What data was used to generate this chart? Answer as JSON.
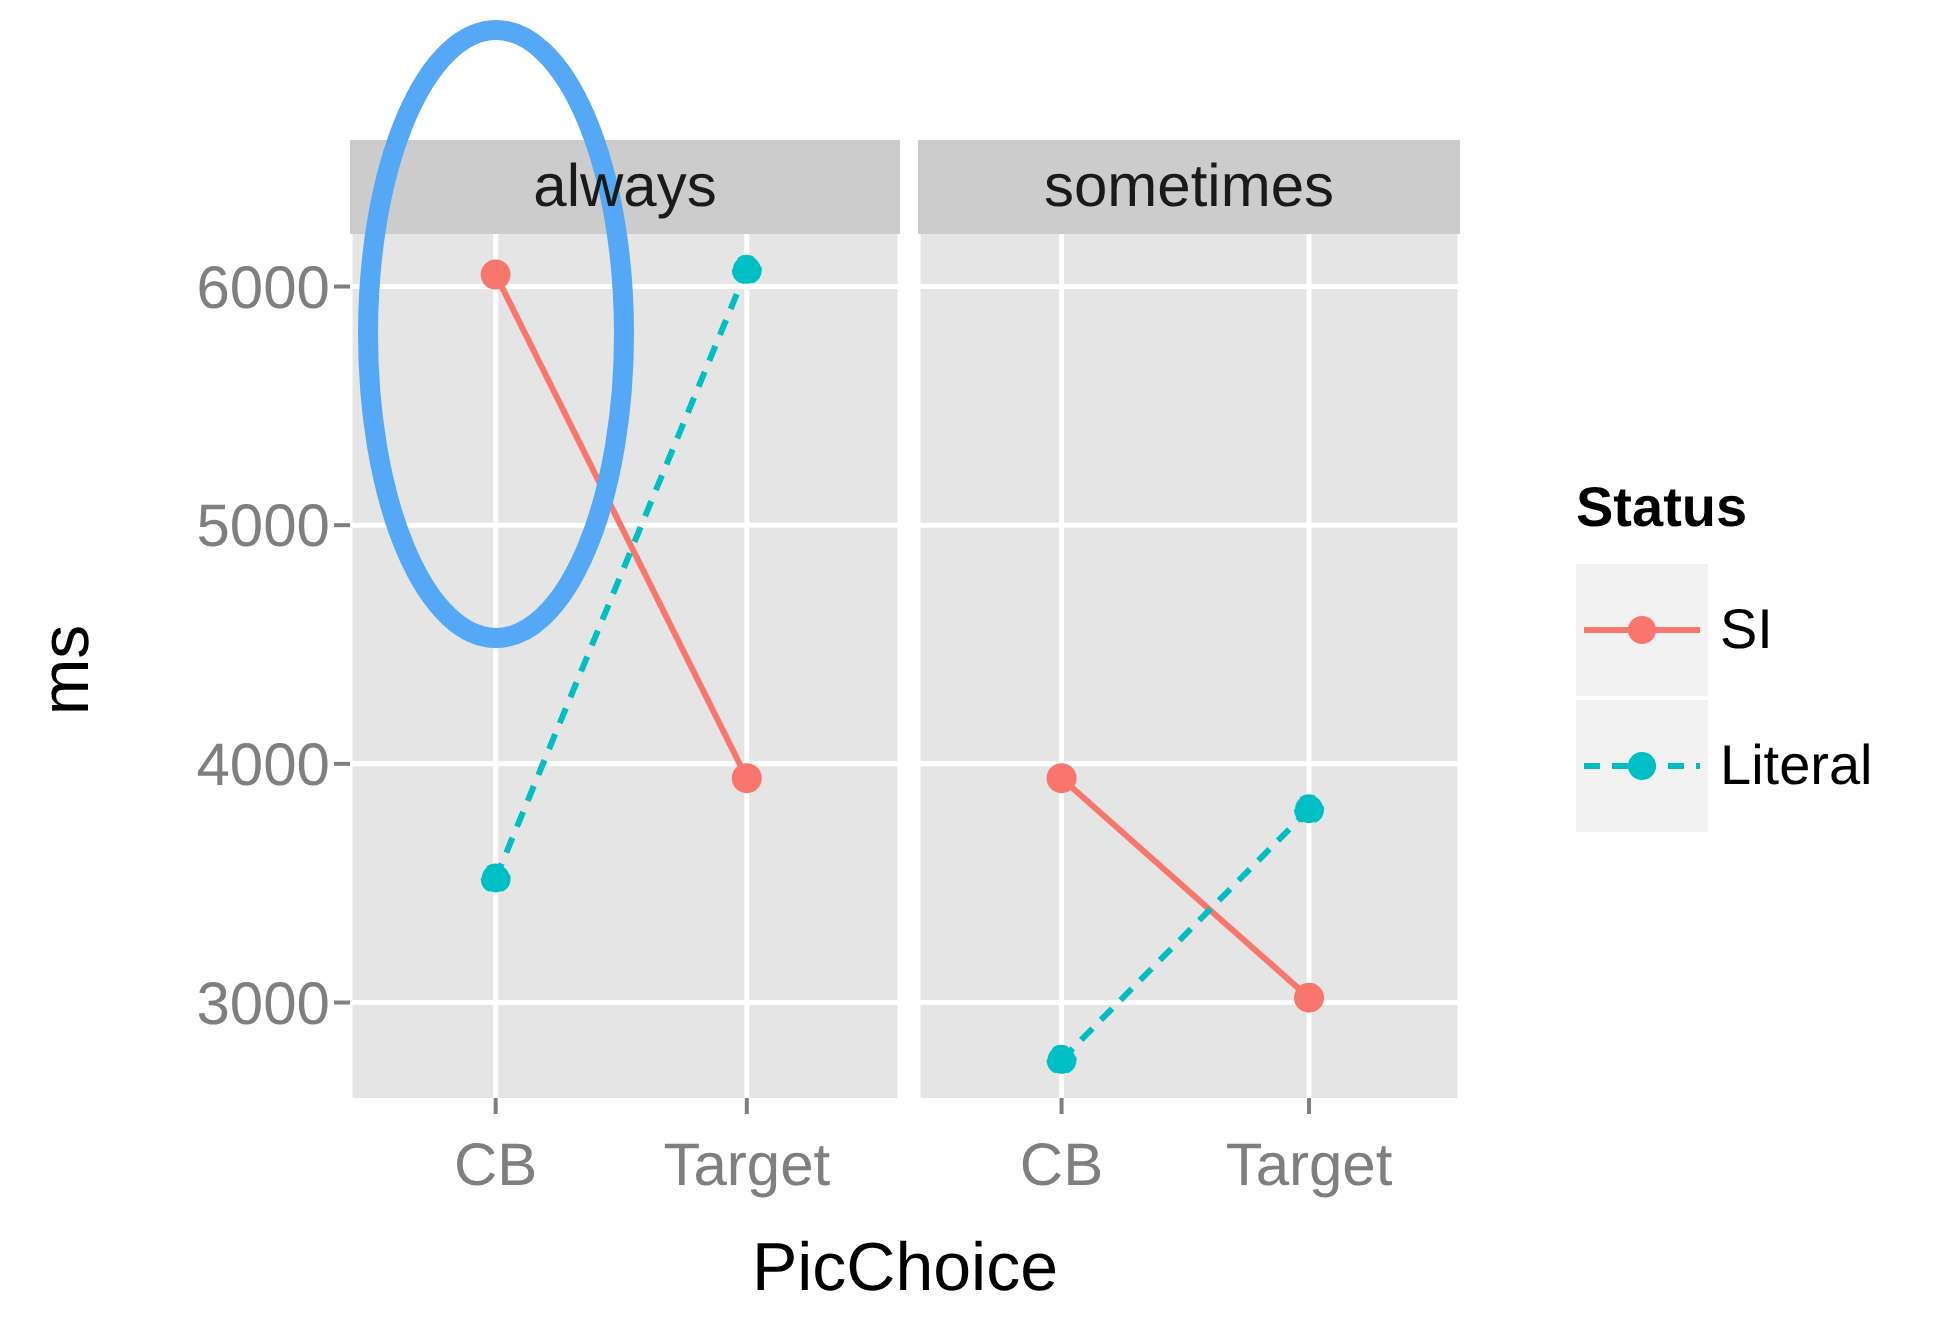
{
  "chart_data": [
    {
      "type": "line",
      "title": "always",
      "xlabel": "PicChoice",
      "ylabel": "ms",
      "categories": [
        "CB",
        "Target"
      ],
      "series": [
        {
          "color": "#f8766d",
          "line_style": "solid",
          "values": [
            6050,
            3940
          ]
        },
        {
          "color": "#00bfc4",
          "line_style": "dashed",
          "values": [
            3520,
            6070
          ]
        }
      ],
      "ylim": [
        2600,
        6220
      ],
      "yticks": [
        3000,
        4000,
        5000,
        6000
      ],
      "grid": true,
      "marker": "circle"
    },
    {
      "type": "line",
      "title": "sometimes",
      "categories": [
        "CB",
        "Target"
      ],
      "series": [
        {
          "name": "SI",
          "color": "#f8766d",
          "line_style": "solid",
          "values": [
            3940,
            3020
          ]
        },
        {
          "name": "Literal",
          "color": "#00bfc4",
          "line_style": "dashed",
          "values": [
            2760,
            3810
          ]
        }
      ],
      "ylim": [
        2600,
        6220
      ],
      "yticks": [
        3000,
        4000,
        5000,
        6000
      ],
      "grid": true,
      "marker": "circle",
      "tick_labels": "x",
      "legend": "right",
      "legend_title": "Status"
    }
  ]
}
